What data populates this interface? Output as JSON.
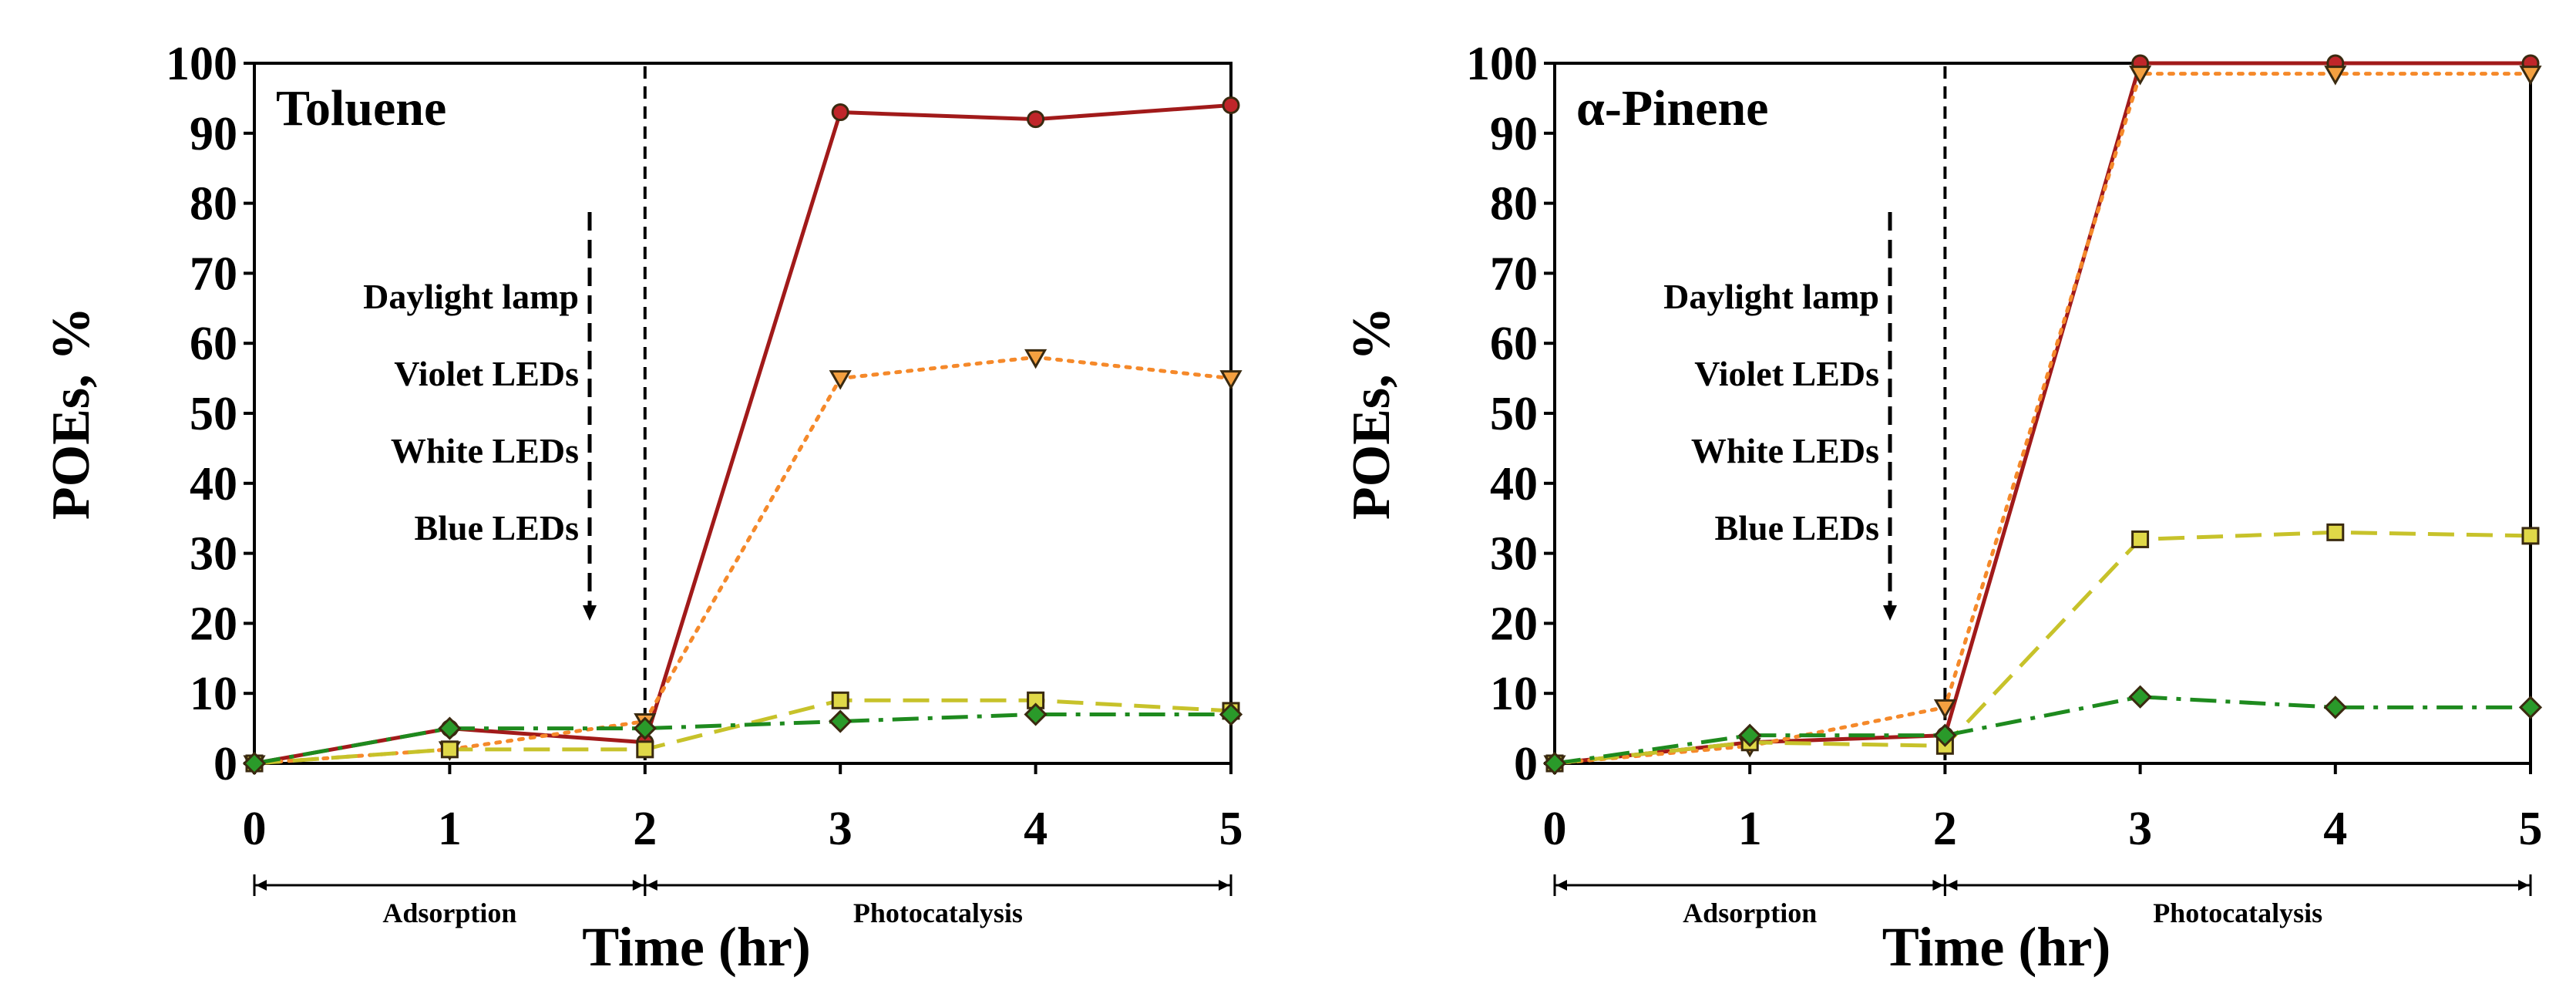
{
  "chart_data": [
    {
      "type": "line",
      "title": "Toluene",
      "xlabel": "Time (hr)",
      "ylabel": "POEs, %",
      "x": [
        0,
        1,
        2,
        3,
        4,
        5
      ],
      "xlim": [
        0,
        5
      ],
      "ylim": [
        0,
        100
      ],
      "yticks": [
        0,
        10,
        20,
        30,
        40,
        50,
        60,
        70,
        80,
        90,
        100
      ],
      "grid": false,
      "divider_x": 2,
      "phases": [
        {
          "label": "Adsorption",
          "from": 0,
          "to": 2
        },
        {
          "label": "Photocatalysis",
          "from": 2,
          "to": 5
        }
      ],
      "legend": [
        "Daylight lamp",
        "Violet LEDs",
        "White LEDs",
        "Blue LEDs"
      ],
      "series": [
        {
          "name": "Daylight lamp",
          "values": [
            0,
            5,
            3,
            93,
            92,
            94
          ],
          "color": "#a11a1a",
          "marker": "circle",
          "marker_fill": "#c0262a",
          "dash": "solid"
        },
        {
          "name": "Violet LEDs",
          "values": [
            0,
            2,
            6,
            55,
            58,
            55
          ],
          "color": "#f5892a",
          "marker": "triangle-down",
          "marker_fill": "#f4a040",
          "dash": "dotted"
        },
        {
          "name": "White LEDs",
          "values": [
            0,
            2,
            2,
            9,
            9,
            7.5
          ],
          "color": "#c7c22a",
          "marker": "square",
          "marker_fill": "#e0d848",
          "dash": "dashed"
        },
        {
          "name": "Blue LEDs",
          "values": [
            0,
            5,
            5,
            6,
            7,
            7
          ],
          "color": "#1e8a1e",
          "marker": "diamond",
          "marker_fill": "#2a9a2a",
          "dash": "dashdot"
        }
      ]
    },
    {
      "type": "line",
      "title": "α-Pinene",
      "xlabel": "Time (hr)",
      "ylabel": "POEs, %",
      "x": [
        0,
        1,
        2,
        3,
        4,
        5
      ],
      "xlim": [
        0,
        5
      ],
      "ylim": [
        0,
        100
      ],
      "yticks": [
        0,
        10,
        20,
        30,
        40,
        50,
        60,
        70,
        80,
        90,
        100
      ],
      "grid": false,
      "divider_x": 2,
      "phases": [
        {
          "label": "Adsorption",
          "from": 0,
          "to": 2
        },
        {
          "label": "Photocatalysis",
          "from": 2,
          "to": 5
        }
      ],
      "legend": [
        "Daylight lamp",
        "Violet LEDs",
        "White LEDs",
        "Blue LEDs"
      ],
      "series": [
        {
          "name": "Daylight lamp",
          "values": [
            0,
            3,
            4,
            100,
            100,
            100
          ],
          "color": "#a11a1a",
          "marker": "circle",
          "marker_fill": "#c0262a",
          "dash": "solid"
        },
        {
          "name": "Violet LEDs",
          "values": [
            0,
            2.5,
            8,
            98.5,
            98.5,
            98.5
          ],
          "color": "#f5892a",
          "marker": "triangle-down",
          "marker_fill": "#f4a040",
          "dash": "dotted"
        },
        {
          "name": "White LEDs",
          "values": [
            0,
            3,
            2.5,
            32,
            33,
            32.5
          ],
          "color": "#c7c22a",
          "marker": "square",
          "marker_fill": "#e0d848",
          "dash": "dashed"
        },
        {
          "name": "Blue LEDs",
          "values": [
            0,
            4,
            4,
            9.5,
            8,
            8
          ],
          "color": "#1e8a1e",
          "marker": "diamond",
          "marker_fill": "#2a9a2a",
          "dash": "dashdot"
        }
      ]
    }
  ]
}
